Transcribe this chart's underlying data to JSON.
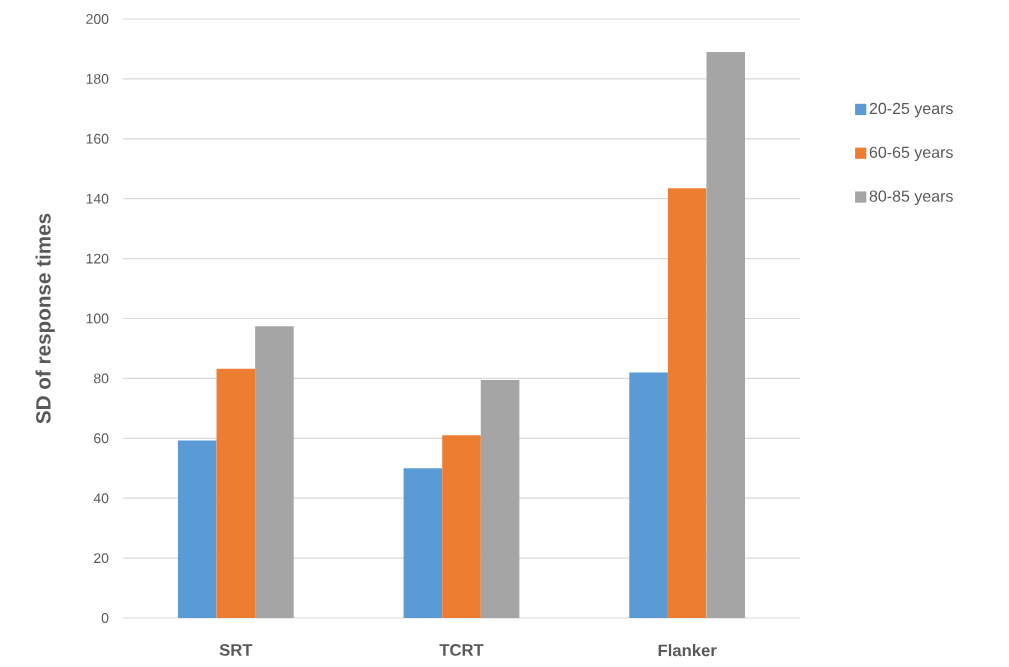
{
  "chart_data": {
    "type": "bar",
    "ylabel": "SD of response times",
    "categories": [
      "SRT",
      "TCRT",
      "Flanker"
    ],
    "series": [
      {
        "name": "20-25 years",
        "color": "#5b9bd5",
        "values": [
          59.3,
          50,
          82
        ]
      },
      {
        "name": "60-65 years",
        "color": "#ed7d31",
        "values": [
          83.2,
          61,
          143.5
        ]
      },
      {
        "name": "80-85 years",
        "color": "#a5a5a5",
        "values": [
          97.4,
          79.5,
          189
        ]
      }
    ],
    "ylim": [
      0,
      200
    ],
    "yticks": [
      0,
      20,
      40,
      60,
      80,
      100,
      120,
      140,
      160,
      180,
      200
    ],
    "grid": "y",
    "legend": "top right"
  }
}
